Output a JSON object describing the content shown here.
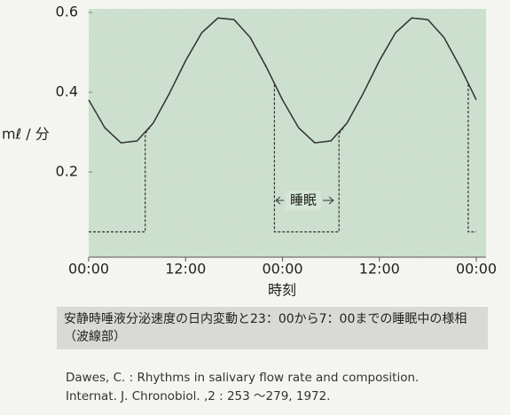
{
  "chart_data": {
    "type": "line",
    "ylabel": "mℓ / 分",
    "xlabel": "時刻",
    "xlim": [
      0,
      48
    ],
    "xticks": [
      {
        "value": 0,
        "label": "00:00"
      },
      {
        "value": 12,
        "label": "12:00"
      },
      {
        "value": 24,
        "label": "00:00"
      },
      {
        "value": 36,
        "label": "12:00"
      },
      {
        "value": 48,
        "label": "00:00"
      }
    ],
    "ylim": [
      0,
      0.6
    ],
    "yticks": [
      0.2,
      0.4,
      0.6
    ],
    "series": [
      {
        "color": "#333333",
        "style": "solid",
        "x": [
          0,
          2,
          4,
          6,
          8,
          10,
          12,
          14,
          16,
          18,
          20,
          22,
          24,
          26,
          28,
          30,
          32,
          34,
          36,
          38,
          40,
          42,
          44,
          46,
          48
        ],
        "values": [
          0.381,
          0.311,
          0.273,
          0.278,
          0.323,
          0.397,
          0.479,
          0.549,
          0.586,
          0.582,
          0.537,
          0.463,
          0.381,
          0.311,
          0.273,
          0.278,
          0.323,
          0.397,
          0.479,
          0.549,
          0.586,
          0.582,
          0.537,
          0.463,
          0.381
        ]
      },
      {
        "color": "#333333",
        "style": "dashed",
        "x": [
          0,
          7,
          7,
          8,
          10,
          12,
          14,
          16,
          18,
          20,
          22,
          23,
          23,
          31,
          31,
          32,
          34,
          36,
          38,
          40,
          42,
          44,
          46,
          47,
          47,
          48
        ],
        "values": [
          0.05,
          0.05,
          0.296,
          0.323,
          0.397,
          0.479,
          0.549,
          0.586,
          0.582,
          0.537,
          0.463,
          0.422,
          0.05,
          0.05,
          0.296,
          0.323,
          0.397,
          0.479,
          0.549,
          0.586,
          0.582,
          0.537,
          0.463,
          0.422,
          0.05,
          0.05
        ]
      }
    ],
    "annotation": "睡眠",
    "caption": "安静時唾液分泌速度の日内変動と23：00から7：00までの睡眠中の様相（波線部）",
    "reference": [
      "Dawes, C. : Rhythms in salivary flow rate and composition.",
      "Internat. J. Chronobiol. ,2 : 253 ～279, 1972."
    ]
  }
}
